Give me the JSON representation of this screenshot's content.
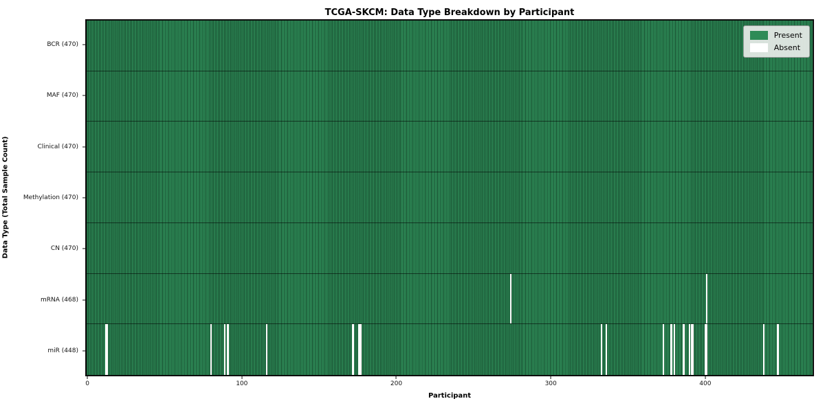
{
  "title": "TCGA-SKCM: Data Type Breakdown by Participant",
  "axes": {
    "xlabel": "Participant",
    "ylabel": "Data Type (Total Sample Count)"
  },
  "legend": {
    "items": [
      {
        "label": "Present",
        "color": "#2e8b57"
      },
      {
        "label": "Absent",
        "color": "#ffffff"
      }
    ]
  },
  "colors": {
    "present": "#2e8b57",
    "absent": "#ffffff",
    "cell_edge": "rgba(6,28,17,0.55)",
    "spine": "#0d0d0d",
    "legend_background": "#e9ece9"
  },
  "chart_data": {
    "type": "heatmap",
    "title": "TCGA-SKCM: Data Type Breakdown by Participant",
    "xlabel": "Participant",
    "ylabel": "Data Type (Total Sample Count)",
    "x_ticks": [
      0,
      100,
      200,
      300,
      400
    ],
    "n_participants": 470,
    "legend": [
      "Present",
      "Absent"
    ],
    "legend_position": "upper right",
    "rows": [
      {
        "label": "BCR (470)",
        "data_type": "BCR",
        "present_count": 470,
        "absent_participants": []
      },
      {
        "label": "MAF (470)",
        "data_type": "MAF",
        "present_count": 470,
        "absent_participants": []
      },
      {
        "label": "Clinical (470)",
        "data_type": "Clinical",
        "present_count": 470,
        "absent_participants": []
      },
      {
        "label": "Methylation (470)",
        "data_type": "Methylation",
        "present_count": 470,
        "absent_participants": []
      },
      {
        "label": "CN (470)",
        "data_type": "CN",
        "present_count": 470,
        "absent_participants": []
      },
      {
        "label": "mRNA (468)",
        "data_type": "mRNA",
        "present_count": 468,
        "absent_participants": [
          274,
          401
        ]
      },
      {
        "label": "miR (448)",
        "data_type": "miR",
        "present_count": 448,
        "absent_participants": [
          12,
          13,
          80,
          89,
          91,
          116,
          172,
          176,
          177,
          333,
          336,
          373,
          378,
          380,
          386,
          390,
          391,
          392,
          400,
          401,
          438,
          447
        ]
      }
    ]
  }
}
